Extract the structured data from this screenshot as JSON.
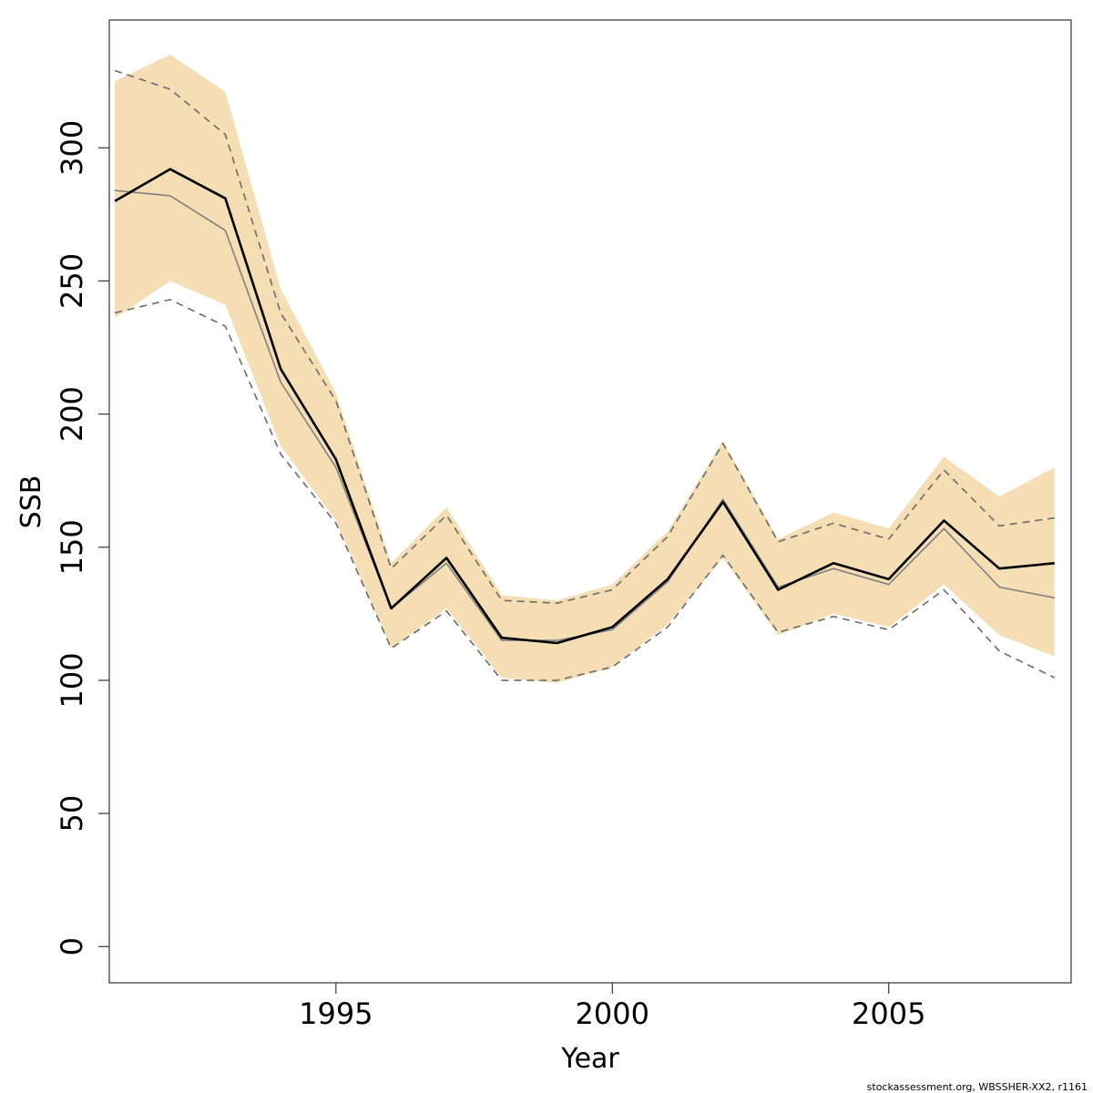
{
  "chart_data": {
    "type": "line",
    "xlabel": "Year",
    "ylabel": "SSB",
    "xlim": [
      1990.9,
      2008.3
    ],
    "ylim": [
      -13.6,
      348
    ],
    "x_ticks": [
      1995,
      2000,
      2005
    ],
    "y_ticks": [
      0,
      50,
      100,
      150,
      200,
      250,
      300
    ],
    "x": [
      1991,
      1992,
      1993,
      1994,
      1995,
      1996,
      1997,
      1998,
      1999,
      2000,
      2001,
      2002,
      2003,
      2004,
      2005,
      2006,
      2007,
      2008
    ],
    "band": {
      "lower": [
        236,
        250,
        241,
        188,
        160,
        112,
        127,
        101,
        99,
        105,
        121,
        146,
        117,
        125,
        120,
        136,
        117,
        109
      ],
      "upper": [
        325,
        335,
        321,
        247,
        208,
        144,
        165,
        132,
        130,
        136,
        156,
        190,
        153,
        163,
        157,
        184,
        169,
        180
      ],
      "color": "#f5deb3"
    },
    "series": [
      {
        "style": "thick-solid",
        "color": "#000000",
        "values": [
          280,
          292,
          281,
          217,
          183,
          127,
          146,
          116,
          114,
          120,
          138,
          167,
          134,
          144,
          138,
          160,
          142,
          144
        ]
      },
      {
        "style": "thin-solid",
        "color": "#808080",
        "values": [
          284,
          282,
          269,
          212,
          180,
          127,
          144,
          115,
          115,
          119,
          137,
          168,
          135,
          142,
          136,
          157,
          135,
          131
        ]
      },
      {
        "style": "dashed",
        "color": "#6b6b6b",
        "values": [
          329,
          322,
          305,
          238,
          205,
          142,
          162,
          130,
          129,
          134,
          154,
          189,
          152,
          159,
          153,
          179,
          158,
          161
        ]
      },
      {
        "style": "dashed",
        "color": "#6b6b6b",
        "values": [
          238,
          243,
          233,
          185,
          159,
          112,
          126,
          100,
          100,
          105,
          120,
          147,
          118,
          124,
          119,
          134,
          111,
          101
        ]
      }
    ],
    "grid": false,
    "legend": "none"
  },
  "footer": "stockassessment.org, WBSSHER-XX2, r1161"
}
